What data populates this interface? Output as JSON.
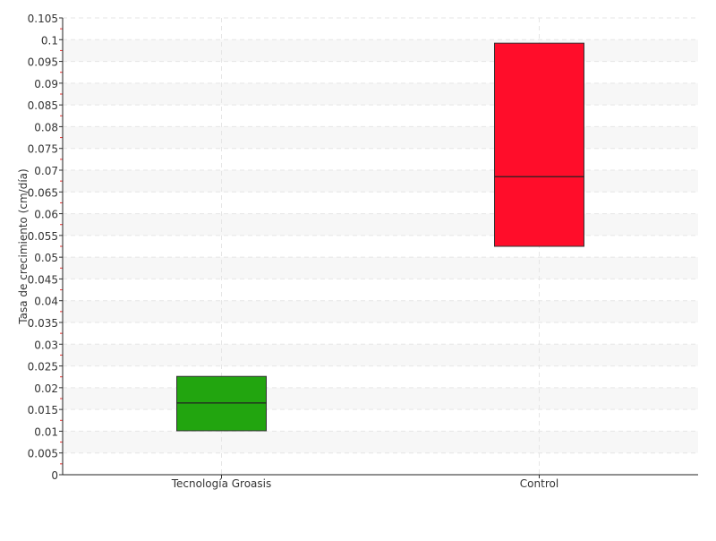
{
  "chart_data": {
    "type": "box",
    "title": "",
    "xlabel": "",
    "ylabel": "Tasa de crecimiento (cm/día)",
    "ylim": [
      0,
      0.105
    ],
    "ytick_step": 0.005,
    "yticks": [
      "0",
      "0.005",
      "0.01",
      "0.015",
      "0.02",
      "0.025",
      "0.03",
      "0.035",
      "0.04",
      "0.045",
      "0.05",
      "0.055",
      "0.06",
      "0.065",
      "0.07",
      "0.075",
      "0.08",
      "0.085",
      "0.09",
      "0.095",
      "0.1",
      "0.105"
    ],
    "grid": true,
    "categories": [
      "Tecnología Groasis",
      "Control"
    ],
    "boxes": [
      {
        "category": "Tecnología Groasis",
        "q1": 0.0101,
        "median": 0.0165,
        "q3": 0.0226,
        "color": "#22a50f"
      },
      {
        "category": "Control",
        "q1": 0.0525,
        "median": 0.0685,
        "q3": 0.0992,
        "color": "#ff0d2a"
      }
    ]
  }
}
